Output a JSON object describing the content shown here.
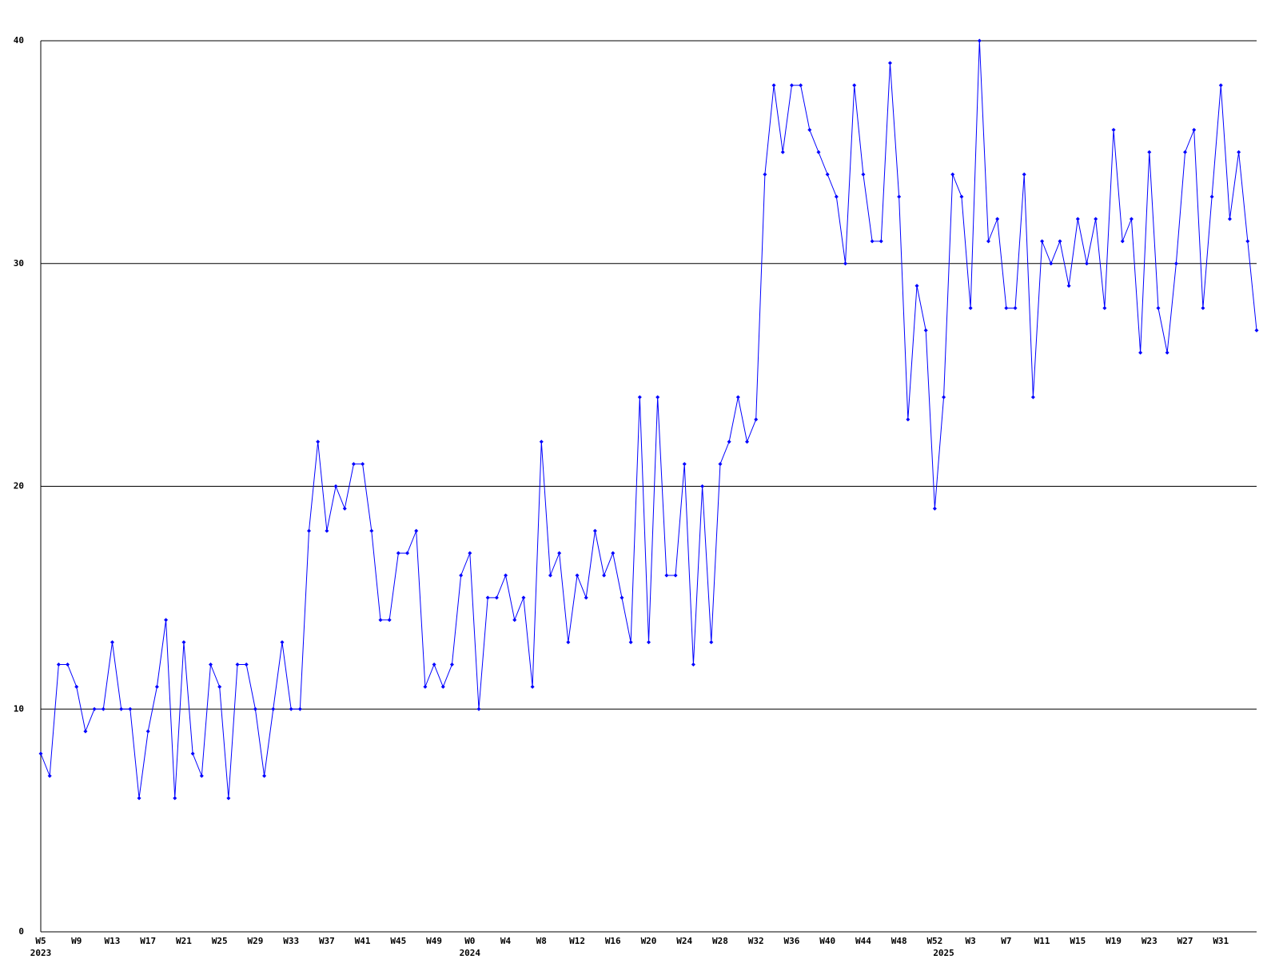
{
  "chart_data": {
    "type": "line",
    "categories": [
      "W5",
      null,
      null,
      null,
      "W9",
      null,
      null,
      null,
      "W13",
      null,
      null,
      null,
      "W17",
      null,
      null,
      null,
      "W21",
      null,
      null,
      null,
      "W25",
      null,
      null,
      null,
      "W29",
      null,
      null,
      null,
      "W33",
      null,
      null,
      null,
      "W37",
      null,
      null,
      null,
      "W41",
      null,
      null,
      null,
      "W45",
      null,
      null,
      null,
      "W49",
      null,
      null,
      null,
      "W0",
      null,
      null,
      null,
      "W4",
      null,
      null,
      null,
      "W8",
      null,
      null,
      null,
      "W12",
      null,
      null,
      null,
      "W16",
      null,
      null,
      null,
      "W20",
      null,
      null,
      null,
      "W24",
      null,
      null,
      null,
      "W28",
      null,
      null,
      null,
      "W32",
      null,
      null,
      null,
      "W36",
      null,
      null,
      null,
      "W40",
      null,
      null,
      null,
      "W44",
      null,
      null,
      null,
      "W48",
      null,
      null,
      null,
      "W52",
      null,
      null,
      null,
      "W3",
      null,
      null,
      null,
      "W7",
      null,
      null,
      null,
      "W11",
      null,
      null,
      null,
      "W15",
      null,
      null,
      null,
      "W19",
      null,
      null,
      null,
      "W23",
      null,
      null,
      null,
      "W27",
      null,
      null,
      null,
      "W31",
      null,
      null,
      null,
      null
    ],
    "secondary_categories": [
      "2023",
      null,
      null,
      null,
      null,
      null,
      null,
      null,
      null,
      null,
      null,
      null,
      null,
      null,
      null,
      null,
      null,
      null,
      null,
      null,
      null,
      null,
      null,
      null,
      null,
      null,
      null,
      null,
      null,
      null,
      null,
      null,
      null,
      null,
      null,
      null,
      null,
      null,
      null,
      null,
      null,
      null,
      null,
      null,
      null,
      null,
      null,
      null,
      "2024",
      null,
      null,
      null,
      null,
      null,
      null,
      null,
      null,
      null,
      null,
      null,
      null,
      null,
      null,
      null,
      null,
      null,
      null,
      null,
      null,
      null,
      null,
      null,
      null,
      null,
      null,
      null,
      null,
      null,
      null,
      null,
      null,
      null,
      null,
      null,
      null,
      null,
      null,
      null,
      null,
      null,
      null,
      null,
      null,
      null,
      null,
      null,
      null,
      null,
      null,
      null,
      null,
      "2025",
      null,
      null,
      null,
      null,
      null,
      null,
      null,
      null,
      null,
      null,
      null,
      null,
      null,
      null,
      null,
      null,
      null,
      null,
      null,
      null,
      null,
      null,
      null,
      null,
      null,
      null,
      null,
      null,
      null,
      null,
      null,
      null,
      null,
      null,
      null
    ],
    "series": [
      {
        "color": "#0000ff",
        "values": [
          8,
          7,
          12,
          12,
          11,
          9,
          10,
          10,
          13,
          10,
          10,
          6,
          9,
          11,
          14,
          6,
          13,
          8,
          7,
          12,
          11,
          6,
          12,
          12,
          10,
          7,
          10,
          13,
          10,
          10,
          18,
          22,
          18,
          20,
          19,
          21,
          21,
          18,
          14,
          14,
          17,
          17,
          18,
          11,
          12,
          11,
          12,
          16,
          17,
          10,
          15,
          15,
          16,
          14,
          15,
          11,
          22,
          16,
          17,
          13,
          16,
          15,
          18,
          16,
          17,
          15,
          13,
          24,
          13,
          24,
          16,
          16,
          21,
          12,
          20,
          13,
          21,
          22,
          24,
          22,
          23,
          34,
          38,
          35,
          38,
          38,
          36,
          35,
          34,
          33,
          30,
          38,
          34,
          31,
          31,
          39,
          33,
          23,
          29,
          27,
          19,
          24,
          34,
          33,
          28,
          40,
          31,
          32,
          28,
          28,
          34,
          24,
          31,
          30,
          31,
          29,
          32,
          30,
          32,
          28,
          36,
          31,
          32,
          26,
          35,
          28,
          26,
          30,
          35,
          36,
          28,
          33,
          38,
          32,
          35,
          31,
          27
        ]
      }
    ],
    "ylim": [
      0,
      40
    ],
    "yticks": [
      0,
      10,
      20,
      30,
      40
    ],
    "grid": true
  }
}
